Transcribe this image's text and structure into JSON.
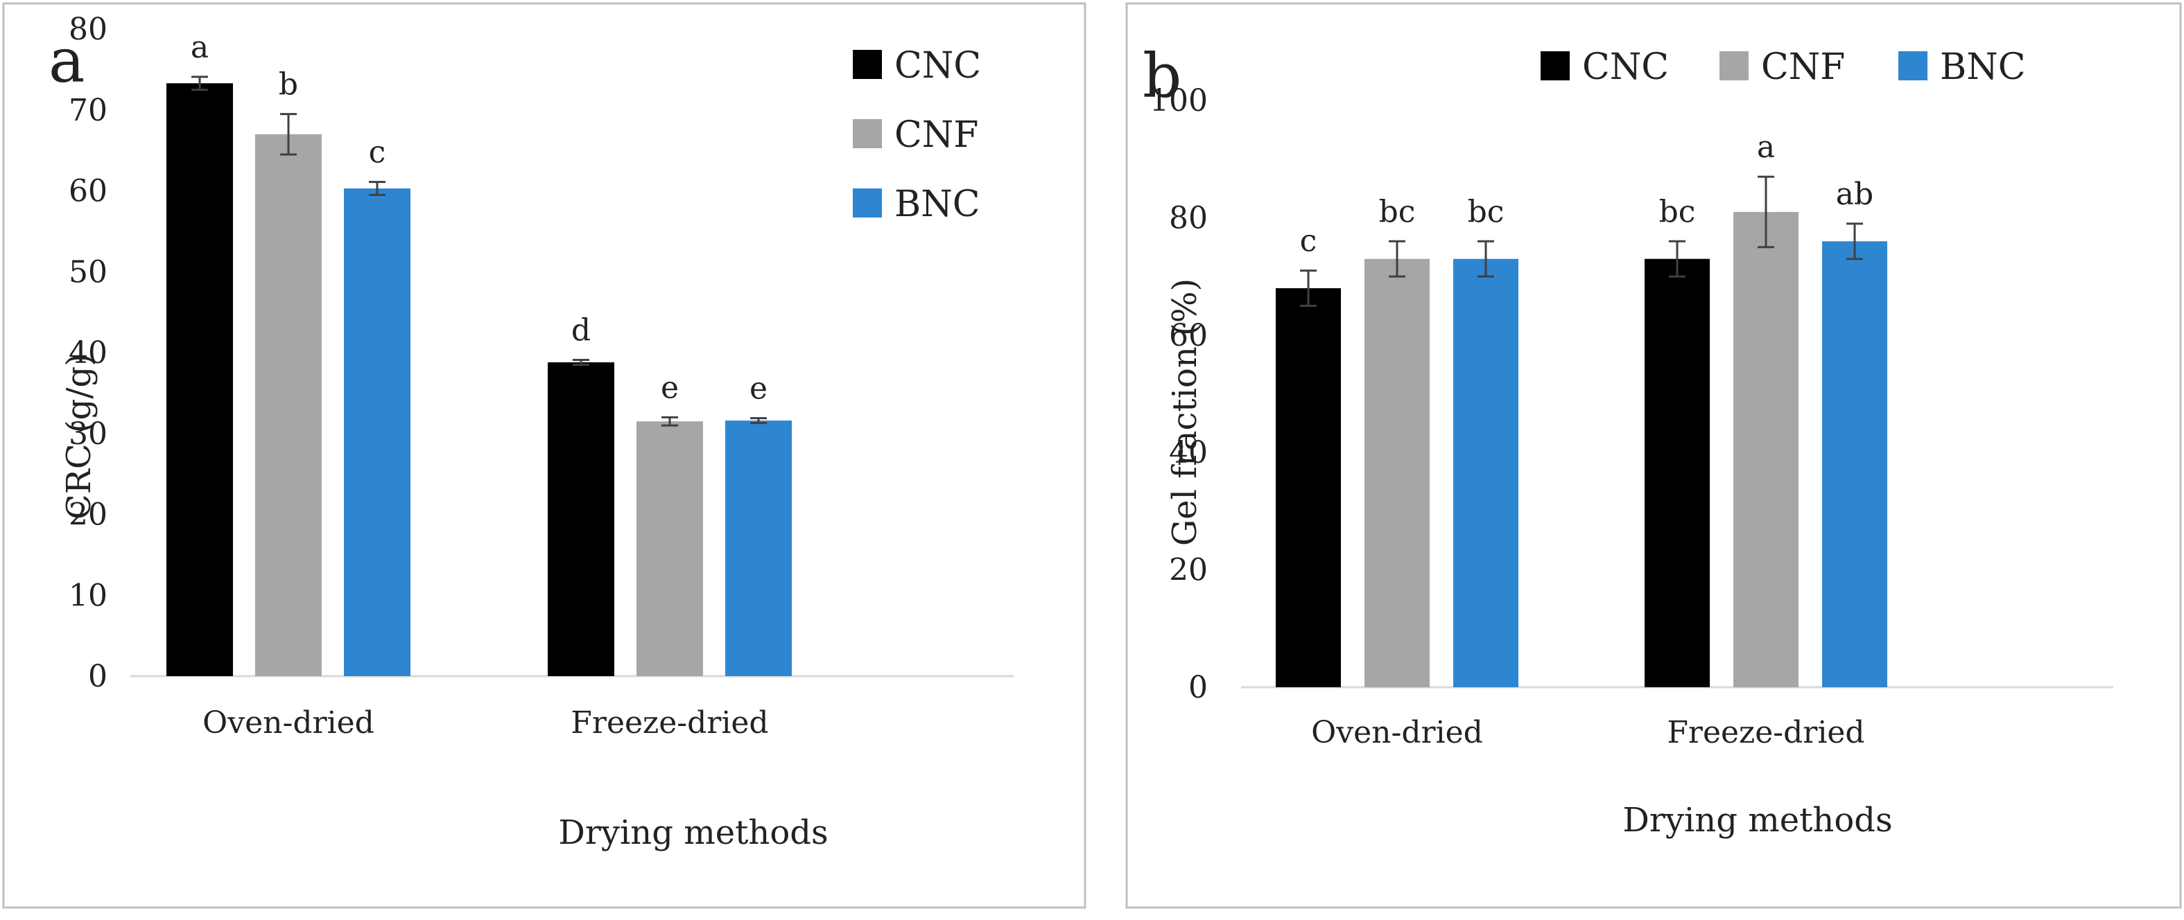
{
  "colors": {
    "CNC": "#000000",
    "CNF": "#A6A6A6",
    "BNC": "#2E86D1"
  },
  "chart_data": [
    {
      "type": "bar",
      "panel": "a",
      "categories": [
        "Oven-dried",
        "Freeze-dried"
      ],
      "series": [
        {
          "name": "CNC",
          "values": [
            73.3,
            38.8
          ],
          "errors": [
            0.8,
            0.3
          ],
          "letters": [
            "a",
            "d"
          ]
        },
        {
          "name": "CNF",
          "values": [
            67.0,
            31.5
          ],
          "errors": [
            2.5,
            0.5
          ],
          "letters": [
            "b",
            "e"
          ]
        },
        {
          "name": "BNC",
          "values": [
            60.3,
            31.6
          ],
          "errors": [
            0.8,
            0.3
          ],
          "letters": [
            "c",
            "e"
          ]
        }
      ],
      "xlabel": "Drying methods",
      "ylabel": "CRC (g/g)",
      "ylim": [
        0,
        80
      ],
      "yticks": [
        0,
        10,
        20,
        30,
        40,
        50,
        60,
        70,
        80
      ],
      "legend_position": "top-right"
    },
    {
      "type": "bar",
      "panel": "b",
      "categories": [
        "Oven-dried",
        "Freeze-dried"
      ],
      "series": [
        {
          "name": "CNC",
          "values": [
            68,
            73
          ],
          "errors": [
            3,
            3
          ],
          "letters": [
            "c",
            "bc"
          ]
        },
        {
          "name": "CNF",
          "values": [
            73,
            81
          ],
          "errors": [
            3,
            6
          ],
          "letters": [
            "bc",
            "a"
          ]
        },
        {
          "name": "BNC",
          "values": [
            73,
            76
          ],
          "errors": [
            3,
            3
          ],
          "letters": [
            "bc",
            "ab"
          ]
        }
      ],
      "xlabel": "Drying methods",
      "ylabel": "Gel fraction (%)",
      "ylim": [
        0,
        100
      ],
      "yticks": [
        0,
        20,
        40,
        60,
        80,
        100
      ],
      "legend_position": "top"
    }
  ]
}
